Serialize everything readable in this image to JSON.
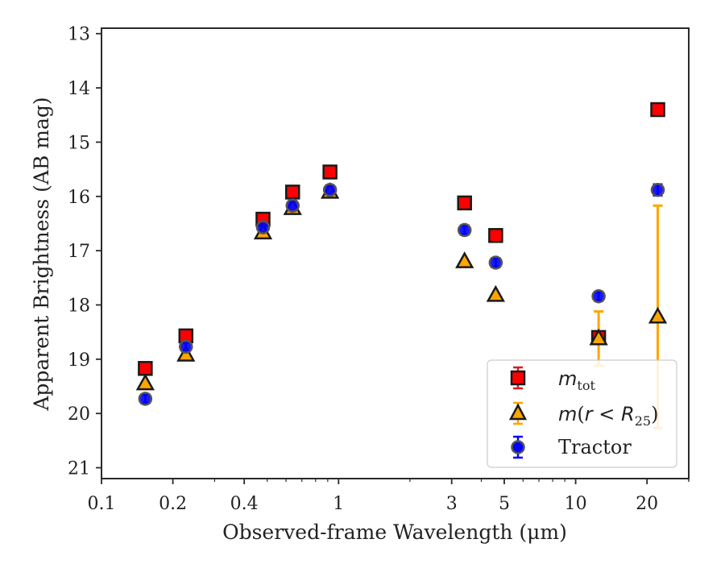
{
  "chart_data": {
    "type": "scatter",
    "xlabel": "Observed-frame Wavelength (μm)",
    "ylabel": "Apparent Brightness (AB mag)",
    "xscale": "log",
    "xlim": [
      0.1,
      30
    ],
    "ylim": [
      21.2,
      12.9
    ],
    "y_inverted": true,
    "x_ticks": [
      {
        "value": 0.1,
        "label": "0.1"
      },
      {
        "value": 0.2,
        "label": "0.2"
      },
      {
        "value": 0.4,
        "label": "0.4"
      },
      {
        "value": 1,
        "label": "1"
      },
      {
        "value": 3,
        "label": "3"
      },
      {
        "value": 5,
        "label": "5"
      },
      {
        "value": 10,
        "label": "10"
      },
      {
        "value": 20,
        "label": "20"
      }
    ],
    "y_ticks": [
      {
        "value": 13,
        "label": "13"
      },
      {
        "value": 14,
        "label": "14"
      },
      {
        "value": 15,
        "label": "15"
      },
      {
        "value": 16,
        "label": "16"
      },
      {
        "value": 17,
        "label": "17"
      },
      {
        "value": 18,
        "label": "18"
      },
      {
        "value": 19,
        "label": "19"
      },
      {
        "value": 20,
        "label": "20"
      },
      {
        "value": 21,
        "label": "21"
      }
    ],
    "grid": false,
    "legend_position": "bottom-right",
    "series": [
      {
        "key": "mtot",
        "marker": "square",
        "color": "#ff0000",
        "edge_color": "#1a1a1a",
        "error_color": "#e41a1c",
        "points": [
          {
            "x": 0.153,
            "y": 19.17,
            "err": 0.05
          },
          {
            "x": 0.227,
            "y": 18.57,
            "err": 0.05
          },
          {
            "x": 0.48,
            "y": 16.42,
            "err": 0.05
          },
          {
            "x": 0.64,
            "y": 15.92,
            "err": 0.05
          },
          {
            "x": 0.92,
            "y": 15.55,
            "err": 0.05
          },
          {
            "x": 3.4,
            "y": 16.12,
            "err": 0.05
          },
          {
            "x": 4.6,
            "y": 16.72,
            "err": 0.05
          },
          {
            "x": 12.5,
            "y": 18.6,
            "err": 0.08
          },
          {
            "x": 22.2,
            "y": 14.4,
            "err": 0.05
          }
        ]
      },
      {
        "key": "mr25",
        "marker": "triangle",
        "color": "#ffa500",
        "edge_color": "#1a1a1a",
        "error_color": "#ffa500",
        "points": [
          {
            "x": 0.153,
            "y": 19.45,
            "err": 0.05
          },
          {
            "x": 0.227,
            "y": 18.92,
            "err": 0.05
          },
          {
            "x": 0.48,
            "y": 16.67,
            "err": 0.05
          },
          {
            "x": 0.64,
            "y": 16.22,
            "err": 0.05
          },
          {
            "x": 0.92,
            "y": 15.92,
            "err": 0.05
          },
          {
            "x": 3.4,
            "y": 17.2,
            "err": 0.05
          },
          {
            "x": 4.6,
            "y": 17.82,
            "err": 0.05
          },
          {
            "x": 12.5,
            "y": 18.62,
            "err": 0.5
          },
          {
            "x": 22.2,
            "y": 18.22,
            "err": 2.05
          }
        ]
      },
      {
        "key": "tractor",
        "name": "Tractor",
        "marker": "circle",
        "color": "#0000ff",
        "edge_color": "#555555",
        "error_color": "#0000ff",
        "points": [
          {
            "x": 0.153,
            "y": 19.73,
            "err": 0.08
          },
          {
            "x": 0.227,
            "y": 18.77,
            "err": 0.08
          },
          {
            "x": 0.48,
            "y": 16.57,
            "err": 0.08
          },
          {
            "x": 0.64,
            "y": 16.17,
            "err": 0.08
          },
          {
            "x": 0.92,
            "y": 15.88,
            "err": 0.08
          },
          {
            "x": 3.4,
            "y": 16.62,
            "err": 0.08
          },
          {
            "x": 4.6,
            "y": 17.22,
            "err": 0.08
          },
          {
            "x": 12.5,
            "y": 17.84,
            "err": 0.08
          },
          {
            "x": 22.2,
            "y": 15.88,
            "err": 0.1
          }
        ]
      }
    ]
  }
}
